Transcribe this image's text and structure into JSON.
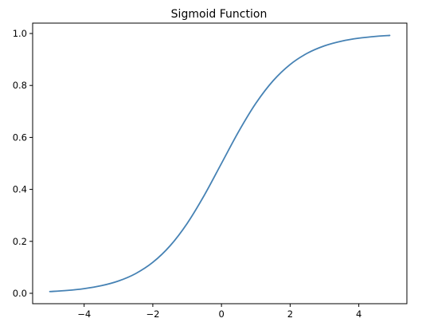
{
  "chart_data": {
    "type": "line",
    "title": "Sigmoid Function",
    "xlabel": "",
    "ylabel": "",
    "xlim": [
      -5.5,
      5.4
    ],
    "ylim": [
      -0.04,
      1.04
    ],
    "x_ticks": [
      -4,
      -2,
      0,
      2,
      4
    ],
    "x_tick_labels": [
      "−4",
      "−2",
      "0",
      "2",
      "4"
    ],
    "y_ticks": [
      0.0,
      0.2,
      0.4,
      0.6,
      0.8,
      1.0
    ],
    "y_tick_labels": [
      "0.0",
      "0.2",
      "0.4",
      "0.6",
      "0.8",
      "1.0"
    ],
    "grid": false,
    "legend": "none",
    "series": [
      {
        "color": "#4682b4",
        "x": [
          -5.0,
          -4.5,
          -4.0,
          -3.5,
          -3.0,
          -2.5,
          -2.0,
          -1.5,
          -1.0,
          -0.5,
          0.0,
          0.5,
          1.0,
          1.5,
          2.0,
          2.5,
          3.0,
          3.5,
          4.0,
          4.5,
          4.9
        ],
        "y": [
          0.0067,
          0.011,
          0.018,
          0.0293,
          0.0474,
          0.0759,
          0.1192,
          0.1824,
          0.2689,
          0.3775,
          0.5,
          0.6225,
          0.7311,
          0.8176,
          0.8808,
          0.9241,
          0.9526,
          0.9707,
          0.982,
          0.989,
          0.9926
        ]
      }
    ]
  }
}
